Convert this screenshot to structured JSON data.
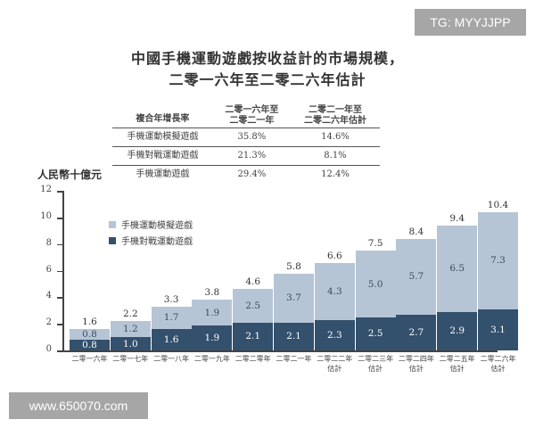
{
  "watermarks": {
    "top_right": "TG: MYYJJPP",
    "bottom_left": "www.650070.com"
  },
  "title": {
    "line1": "中國手機運動遊戲按收益計的市場規模，",
    "line2": "二零一六年至二零二六年估計"
  },
  "cagr_table": {
    "header": {
      "col0": "複合年增長率",
      "col1_line1": "二零一六年至",
      "col1_line2": "二零二一年",
      "col2_line1": "二零二一年至",
      "col2_line2": "二零二六年估計"
    },
    "rows": [
      {
        "label": "手機運動模擬遊戲",
        "v1": "35.8%",
        "v2": "14.6%"
      },
      {
        "label": "手機對戰運動遊戲",
        "v1": "21.3%",
        "v2": "8.1%"
      },
      {
        "label": "手機運動遊戲",
        "v1": "29.4%",
        "v2": "12.4%"
      }
    ]
  },
  "legend": {
    "simulation": "手機運動模擬遊戲",
    "battle": "手機對戰運動遊戲"
  },
  "colors": {
    "simulation": "#b6c5d6",
    "battle": "#33506d",
    "watermark_bg": "#a6a6a6"
  },
  "chart_data": {
    "type": "bar",
    "stacked": true,
    "title": "中國手機運動遊戲按收益計的市場規模，二零一六年至二零二六年估計",
    "xlabel": "",
    "ylabel": "人民幣十億元",
    "ylim": [
      0,
      12
    ],
    "yticks": [
      0,
      2,
      4,
      6,
      8,
      10,
      12
    ],
    "grid": false,
    "legend_position": "upper-left",
    "categories": [
      "二零一六年",
      "二零一七年",
      "二零一八年",
      "二零一九年",
      "二零二零年",
      "二零二一年",
      "二零二二年 估計",
      "二零二三年 估計",
      "二零二四年 估計",
      "二零二五年 估計",
      "二零二六年 估計"
    ],
    "series": [
      {
        "name": "手機對戰運動遊戲",
        "values": [
          0.8,
          1.0,
          1.6,
          1.9,
          2.1,
          2.1,
          2.3,
          2.5,
          2.7,
          2.9,
          3.1
        ]
      },
      {
        "name": "手機運動模擬遊戲",
        "values": [
          0.8,
          1.2,
          1.7,
          1.9,
          2.5,
          3.7,
          4.3,
          5.0,
          5.7,
          6.5,
          7.3
        ]
      }
    ],
    "totals": [
      1.6,
      2.2,
      3.3,
      3.8,
      4.6,
      5.8,
      6.6,
      7.5,
      8.4,
      9.4,
      10.4
    ]
  },
  "bars": [
    {
      "line1": "二零一六年",
      "line2": "",
      "bot": "0.8",
      "top": "0.8",
      "total": "1.6"
    },
    {
      "line1": "二零一七年",
      "line2": "",
      "bot": "1.0",
      "top": "1.2",
      "total": "2.2"
    },
    {
      "line1": "二零一八年",
      "line2": "",
      "bot": "1.6",
      "top": "1.7",
      "total": "3.3"
    },
    {
      "line1": "二零一九年",
      "line2": "",
      "bot": "1.9",
      "top": "1.9",
      "total": "3.8"
    },
    {
      "line1": "二零二零年",
      "line2": "",
      "bot": "2.1",
      "top": "2.5",
      "total": "4.6"
    },
    {
      "line1": "二零二一年",
      "line2": "",
      "bot": "2.1",
      "top": "3.7",
      "total": "5.8"
    },
    {
      "line1": "二零二二年",
      "line2": "估計",
      "bot": "2.3",
      "top": "4.3",
      "total": "6.6"
    },
    {
      "line1": "二零二三年",
      "line2": "估計",
      "bot": "2.5",
      "top": "5.0",
      "total": "7.5"
    },
    {
      "line1": "二零二四年",
      "line2": "估計",
      "bot": "2.7",
      "top": "5.7",
      "total": "8.4"
    },
    {
      "line1": "二零二五年",
      "line2": "估計",
      "bot": "2.9",
      "top": "6.5",
      "total": "9.4"
    },
    {
      "line1": "二零二六年",
      "line2": "估計",
      "bot": "3.1",
      "top": "7.3",
      "total": "10.4"
    }
  ],
  "yticks": [
    "0",
    "2",
    "4",
    "6",
    "8",
    "10",
    "12"
  ]
}
